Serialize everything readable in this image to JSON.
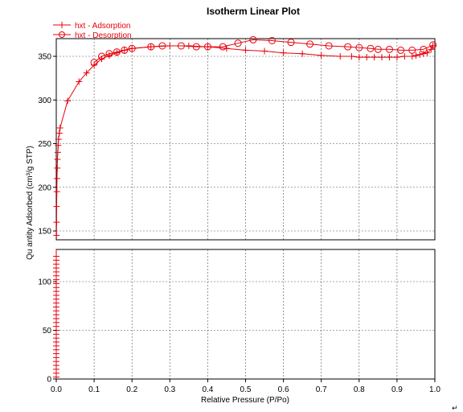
{
  "chart_data": {
    "type": "line",
    "title": "Isotherm Linear Plot",
    "xlabel": "Relative Pressure (P/Po)",
    "ylabel": "Qu antity Adsorbed (cm³/g STP)",
    "upper_panel": {
      "ylim": [
        140,
        370
      ],
      "yticks": [
        "150",
        "200",
        "250",
        "300",
        "350"
      ],
      "ytick_values": [
        150,
        200,
        250,
        300,
        350
      ]
    },
    "lower_panel": {
      "ylim": [
        0,
        130
      ],
      "yticks": [
        "0",
        "50",
        "100"
      ],
      "ytick_values": [
        0,
        50,
        100
      ]
    },
    "xlim": [
      0,
      1
    ],
    "xticks": [
      "0.0",
      "0.1",
      "0.2",
      "0.3",
      "0.4",
      "0.5",
      "0.6",
      "0.7",
      "0.8",
      "0.9",
      "1.0"
    ],
    "xtick_values": [
      0,
      0.1,
      0.2,
      0.3,
      0.4,
      0.5,
      0.6,
      0.7,
      0.8,
      0.9,
      1.0
    ],
    "grid": true,
    "legend": "top-left",
    "colors": {
      "series": "#e8000b"
    },
    "series": [
      {
        "name": "hxt - Adsorption",
        "marker": "plus",
        "points": [
          [
            0.0,
            2
          ],
          [
            0.0,
            6
          ],
          [
            0.0,
            10
          ],
          [
            0.0,
            14
          ],
          [
            0.0,
            18
          ],
          [
            0.0,
            22
          ],
          [
            0.0,
            26
          ],
          [
            0.0,
            30
          ],
          [
            0.0,
            34
          ],
          [
            0.0,
            38
          ],
          [
            0.0,
            42
          ],
          [
            0.0,
            46
          ],
          [
            0.0,
            50
          ],
          [
            0.0,
            54
          ],
          [
            0.0,
            58
          ],
          [
            0.0,
            62
          ],
          [
            0.0,
            66
          ],
          [
            0.0,
            70
          ],
          [
            0.0,
            74
          ],
          [
            0.0,
            78
          ],
          [
            0.0,
            82
          ],
          [
            0.0,
            86
          ],
          [
            0.0,
            90
          ],
          [
            0.0,
            94
          ],
          [
            0.0,
            98
          ],
          [
            0.0,
            102
          ],
          [
            0.0,
            106
          ],
          [
            0.0,
            110
          ],
          [
            0.0,
            114
          ],
          [
            0.0,
            118
          ],
          [
            0.0,
            122
          ],
          [
            0.0,
            126
          ],
          [
            0.0005,
            145
          ],
          [
            0.0008,
            160
          ],
          [
            0.001,
            178
          ],
          [
            0.0015,
            195
          ],
          [
            0.002,
            210
          ],
          [
            0.0025,
            222
          ],
          [
            0.003,
            232
          ],
          [
            0.004,
            240
          ],
          [
            0.005,
            248
          ],
          [
            0.006,
            255
          ],
          [
            0.008,
            262
          ],
          [
            0.01,
            268
          ],
          [
            0.03,
            299
          ],
          [
            0.06,
            321
          ],
          [
            0.08,
            331
          ],
          [
            0.1,
            340
          ],
          [
            0.12,
            347
          ],
          [
            0.14,
            351
          ],
          [
            0.16,
            354
          ],
          [
            0.18,
            357
          ],
          [
            0.2,
            359
          ],
          [
            0.25,
            361
          ],
          [
            0.3,
            362
          ],
          [
            0.35,
            362
          ],
          [
            0.4,
            361
          ],
          [
            0.45,
            359
          ],
          [
            0.5,
            357
          ],
          [
            0.55,
            356
          ],
          [
            0.6,
            354
          ],
          [
            0.65,
            353
          ],
          [
            0.7,
            351
          ],
          [
            0.75,
            350
          ],
          [
            0.78,
            350
          ],
          [
            0.8,
            349
          ],
          [
            0.82,
            349
          ],
          [
            0.84,
            349
          ],
          [
            0.86,
            349
          ],
          [
            0.88,
            349
          ],
          [
            0.9,
            349
          ],
          [
            0.92,
            350
          ],
          [
            0.94,
            350
          ],
          [
            0.95,
            351
          ],
          [
            0.96,
            352
          ],
          [
            0.97,
            353
          ],
          [
            0.98,
            354
          ],
          [
            0.99,
            358
          ],
          [
            0.995,
            362
          ]
        ]
      },
      {
        "name": "hxt - Desorption",
        "marker": "circle",
        "points": [
          [
            0.995,
            363
          ],
          [
            0.97,
            358
          ],
          [
            0.94,
            357
          ],
          [
            0.91,
            357
          ],
          [
            0.88,
            358
          ],
          [
            0.85,
            358
          ],
          [
            0.83,
            359
          ],
          [
            0.8,
            360
          ],
          [
            0.77,
            361
          ],
          [
            0.72,
            362
          ],
          [
            0.67,
            364
          ],
          [
            0.62,
            366
          ],
          [
            0.57,
            368
          ],
          [
            0.52,
            369
          ],
          [
            0.48,
            365
          ],
          [
            0.44,
            361
          ],
          [
            0.4,
            361
          ],
          [
            0.37,
            361
          ],
          [
            0.33,
            362
          ],
          [
            0.28,
            362
          ],
          [
            0.25,
            361
          ],
          [
            0.2,
            359
          ],
          [
            0.18,
            357
          ],
          [
            0.16,
            355
          ],
          [
            0.14,
            353
          ],
          [
            0.12,
            350
          ],
          [
            0.1,
            343
          ]
        ]
      }
    ]
  }
}
